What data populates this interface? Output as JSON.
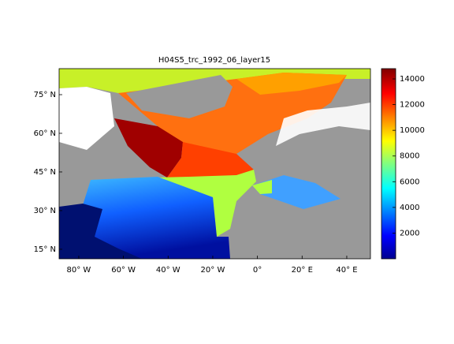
{
  "title": "H04S5_trc_1992_06_layer15",
  "lon_lim": [
    -88.8,
    50.6
  ],
  "lat_lim": [
    11.3,
    85.1
  ],
  "lon_ticks": [
    {
      "value": -80,
      "label": "80° W"
    },
    {
      "value": -60,
      "label": "60° W"
    },
    {
      "value": -40,
      "label": "40° W"
    },
    {
      "value": -20,
      "label": "20° W"
    },
    {
      "value": 0,
      "label": "0°"
    },
    {
      "value": 20,
      "label": "20° E"
    },
    {
      "value": 40,
      "label": "40° E"
    }
  ],
  "lat_ticks": [
    {
      "value": 15,
      "label": "15° N"
    },
    {
      "value": 30,
      "label": "30° N"
    },
    {
      "value": 45,
      "label": "45° N"
    },
    {
      "value": 60,
      "label": "60° N"
    },
    {
      "value": 75,
      "label": "75° N"
    }
  ],
  "colorbar": {
    "lim": [
      0,
      14800
    ],
    "ticks": [
      2000,
      4000,
      6000,
      8000,
      10000,
      12000,
      14000
    ]
  }
}
